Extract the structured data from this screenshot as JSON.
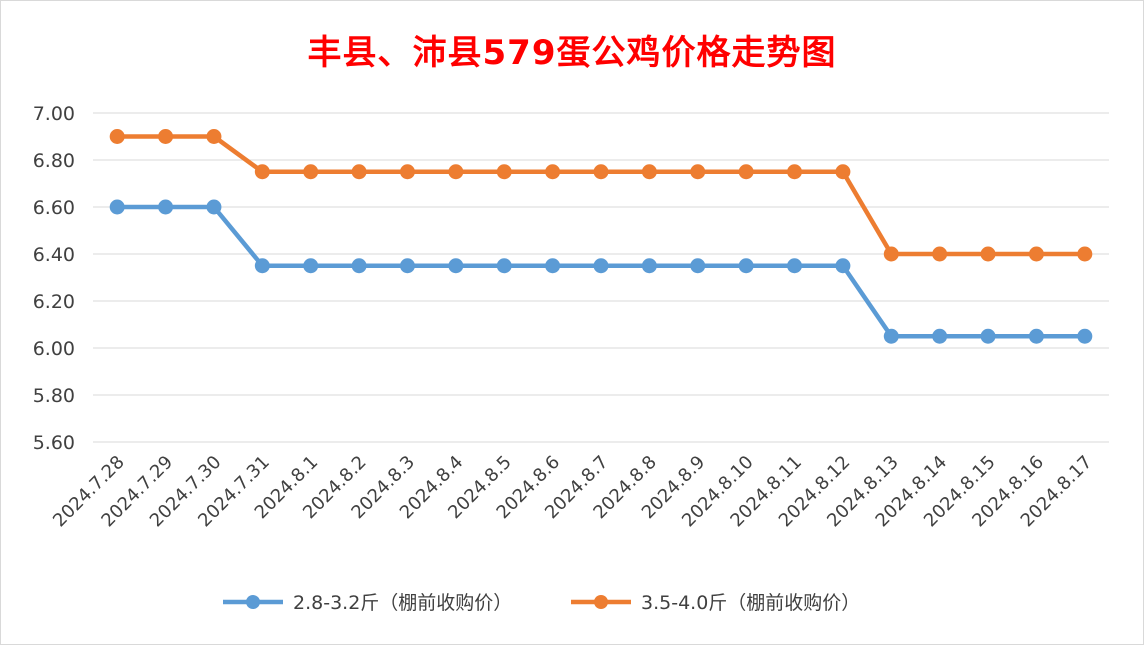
{
  "title": "丰县、沛县579蛋公鸡价格走势图",
  "chart_data": {
    "type": "line",
    "title": "丰县、沛县579蛋公鸡价格走势图",
    "xlabel": "",
    "ylabel": "",
    "ylim": [
      5.6,
      7.0
    ],
    "yticks": [
      "7.00",
      "6.80",
      "6.60",
      "6.40",
      "6.20",
      "6.00",
      "5.80",
      "5.60"
    ],
    "grid": "horizontal",
    "legend_position": "bottom",
    "categories": [
      "2024.7.28",
      "2024.7.29",
      "2024.7.30",
      "2024.7.31",
      "2024.8.1",
      "2024.8.2",
      "2024.8.3",
      "2024.8.4",
      "2024.8.5",
      "2024.8.6",
      "2024.8.7",
      "2024.8.8",
      "2024.8.9",
      "2024.8.10",
      "2024.8.11",
      "2024.8.12",
      "2024.8.13",
      "2024.8.14",
      "2024.8.15",
      "2024.8.16",
      "2024.8.17"
    ],
    "series": [
      {
        "name": "2.8-3.2斤（棚前收购价）",
        "color": "#5b9bd5",
        "values": [
          6.6,
          6.6,
          6.6,
          6.35,
          6.35,
          6.35,
          6.35,
          6.35,
          6.35,
          6.35,
          6.35,
          6.35,
          6.35,
          6.35,
          6.35,
          6.35,
          6.05,
          6.05,
          6.05,
          6.05,
          6.05
        ]
      },
      {
        "name": "3.5-4.0斤（棚前收购价）",
        "color": "#ed7d31",
        "values": [
          6.9,
          6.9,
          6.9,
          6.75,
          6.75,
          6.75,
          6.75,
          6.75,
          6.75,
          6.75,
          6.75,
          6.75,
          6.75,
          6.75,
          6.75,
          6.75,
          6.4,
          6.4,
          6.4,
          6.4,
          6.4
        ]
      }
    ]
  }
}
